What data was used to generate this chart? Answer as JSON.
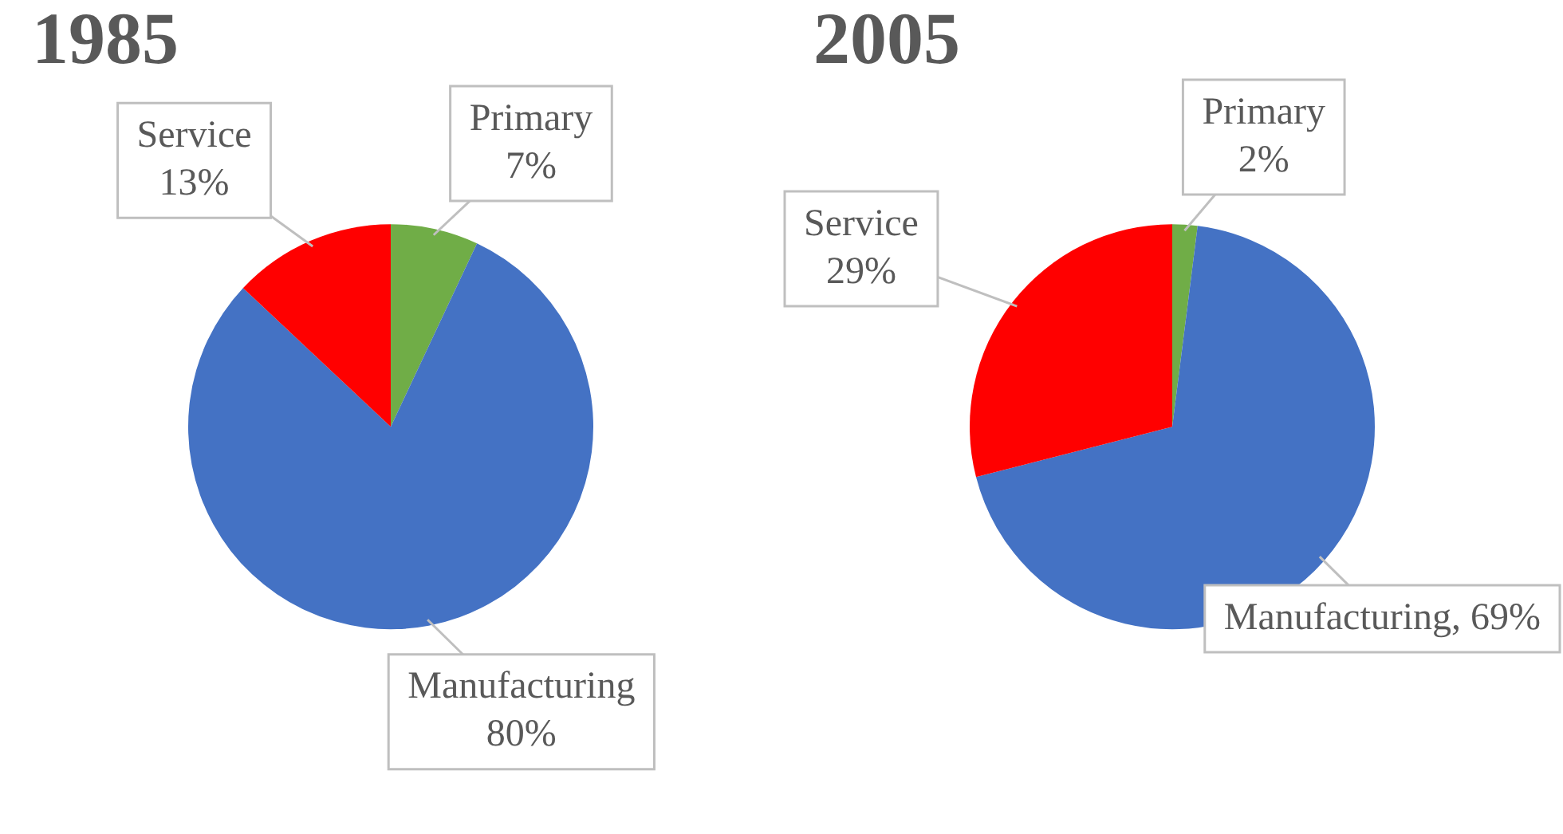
{
  "chart_data": [
    {
      "type": "pie",
      "title": "1985",
      "categories": [
        "Primary",
        "Manufacturing",
        "Service"
      ],
      "values": [
        7,
        80,
        13
      ],
      "value_labels": [
        "7%",
        "80%",
        "13%"
      ],
      "colors": [
        "#70ad47",
        "#4472c4",
        "#ff0000"
      ],
      "legend": false
    },
    {
      "type": "pie",
      "title": "2005",
      "categories": [
        "Primary",
        "Manufacturing",
        "Service"
      ],
      "values": [
        2,
        69,
        29
      ],
      "value_labels": [
        "2%",
        "69%",
        "29%"
      ],
      "colors": [
        "#70ad47",
        "#4472c4",
        "#ff0000"
      ],
      "legend": false
    }
  ]
}
